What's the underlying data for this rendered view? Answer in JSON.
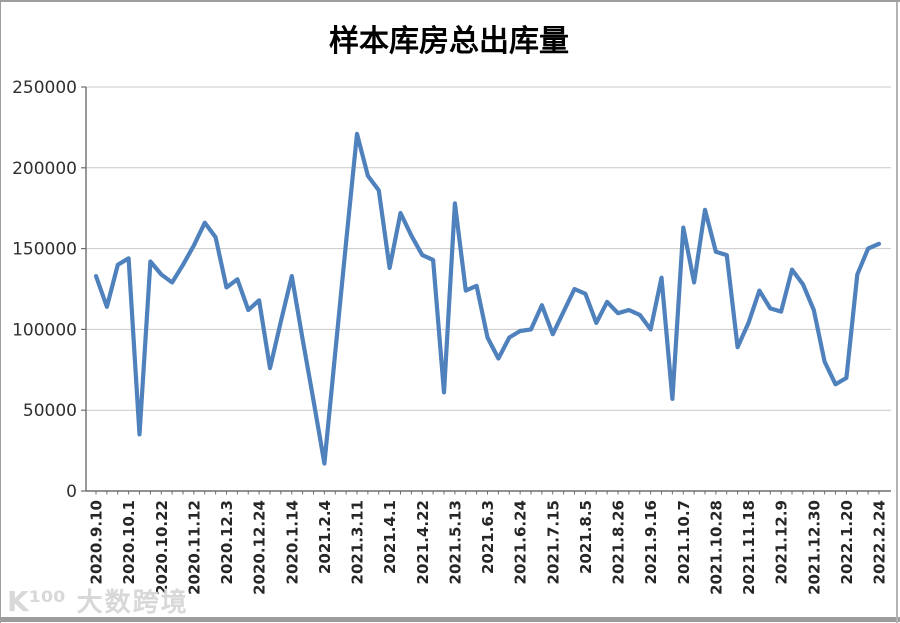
{
  "chart_data": {
    "type": "line",
    "title": "样本库房总出库量",
    "xlabel": "",
    "ylabel": "",
    "ylim": [
      0,
      250000
    ],
    "ytick_step": 50000,
    "y_tick_labels": [
      "0",
      "50000",
      "100000",
      "150000",
      "200000",
      "250000"
    ],
    "grid": true,
    "legend": "none",
    "label_interval": 3,
    "x_labels": [
      "2020.9.10",
      "2020.10.1",
      "2020.10.22",
      "2020.11.12",
      "2020.12.3",
      "2020.12.24",
      "2020.1.14",
      "2021.2.4",
      "2021.3.11",
      "2021.4.1",
      "2021.4.22",
      "2021.5.13",
      "2021.6.3",
      "2021.6.24",
      "2021.7.15",
      "2021.8.5",
      "2021.8.26",
      "2021.9.16",
      "2021.10.7",
      "2021.10.28",
      "2021.11.18",
      "2021.12.9",
      "2021.12.30",
      "2022.1.20",
      "2022.2.24"
    ],
    "values": [
      133000,
      114000,
      140000,
      144000,
      35000,
      142000,
      134000,
      129000,
      140000,
      152000,
      166000,
      157000,
      126000,
      131000,
      112000,
      118000,
      76000,
      105000,
      133000,
      94000,
      56000,
      17000,
      86000,
      154000,
      221000,
      195000,
      186000,
      138000,
      172000,
      158000,
      146000,
      143000,
      61000,
      178000,
      124000,
      127000,
      95000,
      82000,
      95000,
      99000,
      100000,
      115000,
      97000,
      111000,
      125000,
      122000,
      104000,
      117000,
      110000,
      112000,
      109000,
      100000,
      132000,
      57000,
      163000,
      129000,
      174000,
      148000,
      146000,
      89000,
      104000,
      124000,
      113000,
      111000,
      137000,
      128000,
      112000,
      80000,
      66000,
      70000,
      134000,
      150000,
      153000
    ],
    "colors": {
      "line": "#4F81BD",
      "grid": "#c9c9c9",
      "axis": "#6e6e6e"
    }
  },
  "watermark": {
    "logo": "K¹⁰⁰",
    "text": "大数跨境"
  }
}
